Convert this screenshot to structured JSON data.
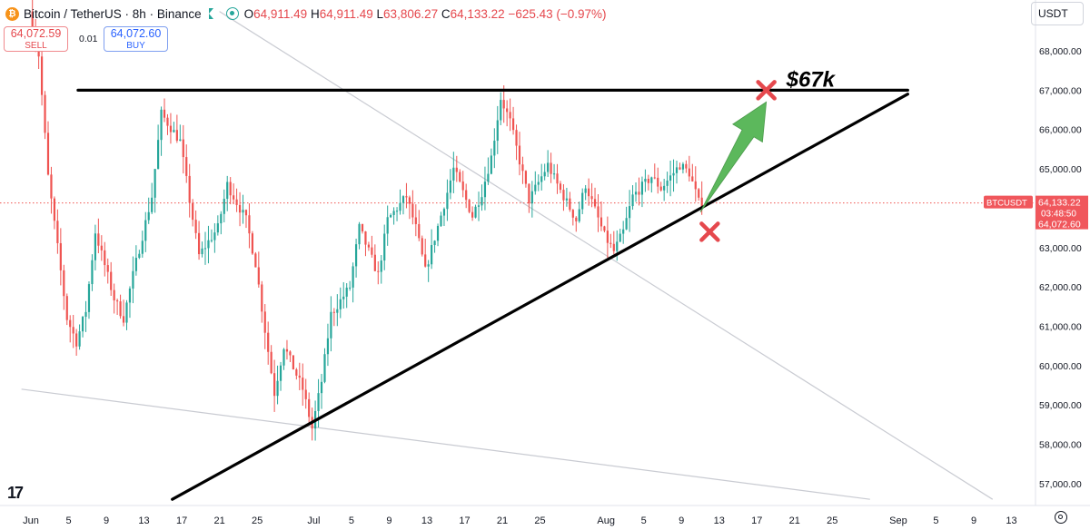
{
  "header": {
    "symbol": "Bitcoin / TetherUS · 8h · Binance",
    "coin_icon": "bitcoin-icon",
    "open_label": "O",
    "open": "64,911.49",
    "high_label": "H",
    "high": "64,911.49",
    "low_label": "L",
    "low": "63,806.27",
    "close_label": "C",
    "close": "64,133.22",
    "change": "−625.43 (−0.97%)"
  },
  "trade": {
    "sell_price": "64,072.59",
    "sell_label": "SELL",
    "spread": "0.01",
    "buy_price": "64,072.60",
    "buy_label": "BUY"
  },
  "currency": "USDT",
  "colors": {
    "up": "#26a69a",
    "down": "#ef5350",
    "arrow": "#5cb85c",
    "cross": "#e5484d",
    "badge": "#f0575c"
  },
  "chart_data": {
    "type": "candlestick",
    "y_ticks": [
      "57,000.00",
      "58,000.00",
      "59,000.00",
      "60,000.00",
      "61,000.00",
      "62,000.00",
      "63,000.00",
      "64,000.00",
      "65,000.00",
      "66,000.00",
      "67,000.00",
      "68,000.00"
    ],
    "ylim": [
      56600,
      69000
    ],
    "x_ticks": [
      {
        "label": "Jun",
        "date": "2024-06-01"
      },
      {
        "label": "5",
        "date": "2024-06-05"
      },
      {
        "label": "9",
        "date": "2024-06-09"
      },
      {
        "label": "13",
        "date": "2024-06-13"
      },
      {
        "label": "17",
        "date": "2024-06-17"
      },
      {
        "label": "21",
        "date": "2024-06-21"
      },
      {
        "label": "25",
        "date": "2024-06-25"
      },
      {
        "label": "Jul",
        "date": "2024-07-01"
      },
      {
        "label": "5",
        "date": "2024-07-05"
      },
      {
        "label": "9",
        "date": "2024-07-09"
      },
      {
        "label": "13",
        "date": "2024-07-13"
      },
      {
        "label": "17",
        "date": "2024-07-17"
      },
      {
        "label": "21",
        "date": "2024-07-21"
      },
      {
        "label": "25",
        "date": "2024-07-25"
      },
      {
        "label": "Aug",
        "date": "2024-08-01"
      },
      {
        "label": "5",
        "date": "2024-08-05"
      },
      {
        "label": "9",
        "date": "2024-08-09"
      },
      {
        "label": "13",
        "date": "2024-08-13"
      },
      {
        "label": "17",
        "date": "2024-08-17"
      },
      {
        "label": "21",
        "date": "2024-08-21"
      },
      {
        "label": "25",
        "date": "2024-08-25"
      },
      {
        "label": "Sep",
        "date": "2024-09-01"
      },
      {
        "label": "5",
        "date": "2024-09-05"
      },
      {
        "label": "9",
        "date": "2024-09-09"
      },
      {
        "label": "13",
        "date": "2024-09-13"
      }
    ],
    "price_path": [
      {
        "date": "2024-06-01",
        "price": 69000
      },
      {
        "date": "2024-06-02",
        "price": 67900
      },
      {
        "date": "2024-06-03",
        "price": 64800
      },
      {
        "date": "2024-06-05",
        "price": 61200
      },
      {
        "date": "2024-06-06",
        "price": 60600
      },
      {
        "date": "2024-06-07",
        "price": 61400
      },
      {
        "date": "2024-06-08",
        "price": 63400
      },
      {
        "date": "2024-06-10",
        "price": 61700
      },
      {
        "date": "2024-06-11",
        "price": 61200
      },
      {
        "date": "2024-06-12",
        "price": 62300
      },
      {
        "date": "2024-06-14",
        "price": 64300
      },
      {
        "date": "2024-06-15",
        "price": 66400
      },
      {
        "date": "2024-06-17",
        "price": 65700
      },
      {
        "date": "2024-06-18",
        "price": 64200
      },
      {
        "date": "2024-06-19",
        "price": 62800
      },
      {
        "date": "2024-06-21",
        "price": 63500
      },
      {
        "date": "2024-06-22",
        "price": 64600
      },
      {
        "date": "2024-06-24",
        "price": 63700
      },
      {
        "date": "2024-06-25",
        "price": 62600
      },
      {
        "date": "2024-06-26",
        "price": 60900
      },
      {
        "date": "2024-06-27",
        "price": 59300
      },
      {
        "date": "2024-06-28",
        "price": 60500
      },
      {
        "date": "2024-06-30",
        "price": 59400
      },
      {
        "date": "2024-07-01",
        "price": 58400
      },
      {
        "date": "2024-07-02",
        "price": 59600
      },
      {
        "date": "2024-07-03",
        "price": 61300
      },
      {
        "date": "2024-07-05",
        "price": 62000
      },
      {
        "date": "2024-07-06",
        "price": 63500
      },
      {
        "date": "2024-07-08",
        "price": 62300
      },
      {
        "date": "2024-07-09",
        "price": 63700
      },
      {
        "date": "2024-07-11",
        "price": 64300
      },
      {
        "date": "2024-07-12",
        "price": 63500
      },
      {
        "date": "2024-07-13",
        "price": 62400
      },
      {
        "date": "2024-07-15",
        "price": 64100
      },
      {
        "date": "2024-07-16",
        "price": 65000
      },
      {
        "date": "2024-07-18",
        "price": 63800
      },
      {
        "date": "2024-07-19",
        "price": 64400
      },
      {
        "date": "2024-07-20",
        "price": 65300
      },
      {
        "date": "2024-07-21",
        "price": 66800
      },
      {
        "date": "2024-07-22",
        "price": 66200
      },
      {
        "date": "2024-07-23",
        "price": 65200
      },
      {
        "date": "2024-07-24",
        "price": 64200
      },
      {
        "date": "2024-07-26",
        "price": 65100
      },
      {
        "date": "2024-07-27",
        "price": 64600
      },
      {
        "date": "2024-07-29",
        "price": 63700
      },
      {
        "date": "2024-07-30",
        "price": 64600
      },
      {
        "date": "2024-08-01",
        "price": 63300
      },
      {
        "date": "2024-08-02",
        "price": 62900
      },
      {
        "date": "2024-08-03",
        "price": 63400
      },
      {
        "date": "2024-08-04",
        "price": 64300
      },
      {
        "date": "2024-08-06",
        "price": 64800
      },
      {
        "date": "2024-08-07",
        "price": 64500
      },
      {
        "date": "2024-08-09",
        "price": 65100
      },
      {
        "date": "2024-08-10",
        "price": 64900
      },
      {
        "date": "2024-08-11",
        "price": 64150
      }
    ],
    "horizontal_resistance": {
      "price": 67000,
      "from": "2024-06-06",
      "to": "2024-09-02"
    },
    "rising_support": [
      {
        "date": "2024-06-16",
        "price": 56600
      },
      {
        "date": "2024-09-02",
        "price": 66900
      }
    ],
    "faint_lines": [
      [
        {
          "date": "2024-06-21",
          "price": 69000
        },
        {
          "date": "2024-09-11",
          "price": 56600
        }
      ],
      [
        {
          "date": "2024-05-31",
          "price": 59400
        },
        {
          "date": "2024-08-29",
          "price": 56600
        }
      ]
    ],
    "current_price_line": 64133.22,
    "annotations": {
      "target_label": "$67k",
      "target_cross": {
        "date": "2024-08-18",
        "price": 67000
      },
      "invalidation_cross": {
        "date": "2024-08-12",
        "price": 63400
      },
      "arrow_from": {
        "date": "2024-08-11",
        "price": 63900
      },
      "arrow_to": {
        "date": "2024-08-18",
        "price": 66700
      }
    },
    "price_badge": {
      "symbol": "BTCUSDT",
      "price": "64,133.22",
      "countdown": "03:48:50",
      "bid": "64,072.60"
    }
  }
}
